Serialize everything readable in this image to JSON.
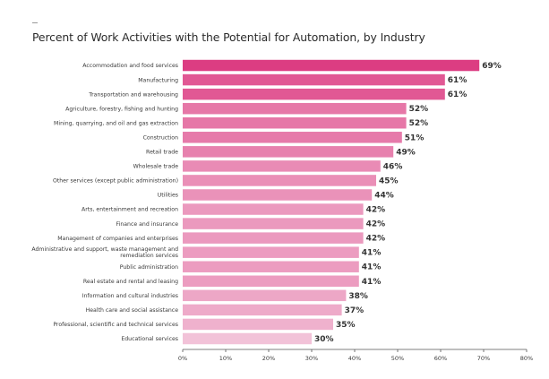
{
  "chart_data": {
    "type": "bar",
    "orientation": "horizontal",
    "title": "Percent of Work Activities with the Potential for Automation, by Industry",
    "xlabel": "",
    "ylabel": "",
    "xlim": [
      0,
      80
    ],
    "x_ticks": [
      "0%",
      "10%",
      "20%",
      "30%",
      "40%",
      "50%",
      "60%",
      "70%",
      "80%"
    ],
    "grid": false,
    "legend": "none",
    "categories": [
      "Accommodation and food services",
      "Manufacturing",
      "Transportation and warehousing",
      "Agriculture, forestry, fishing and hunting",
      "Mining, quarrying, and oil and gas extraction",
      "Construction",
      "Retail trade",
      "Wholesale trade",
      "Other services (except public administration)",
      "Utilities",
      "Arts, entertainment and recreation",
      "Finance and insurance",
      "Management of companies and enterprises",
      "Administrative and support, waste management and remediation services",
      "Public administration",
      "Real estate and rental and leasing",
      "Information and cultural industries",
      "Health care and social assistance",
      "Professional, scientific and technical services",
      "Educational services"
    ],
    "values": [
      69,
      61,
      61,
      52,
      52,
      51,
      49,
      46,
      45,
      44,
      42,
      42,
      42,
      41,
      41,
      41,
      38,
      37,
      35,
      30
    ],
    "value_labels": [
      "69%",
      "61%",
      "61%",
      "52%",
      "52%",
      "51%",
      "49%",
      "46%",
      "45%",
      "44%",
      "42%",
      "42%",
      "42%",
      "41%",
      "41%",
      "41%",
      "38%",
      "37%",
      "35%",
      "30%"
    ],
    "colors": {
      "bar_scale_high": "#dc3d82",
      "bar_scale_low": "#f2c2d8",
      "axis": "#555555"
    }
  }
}
